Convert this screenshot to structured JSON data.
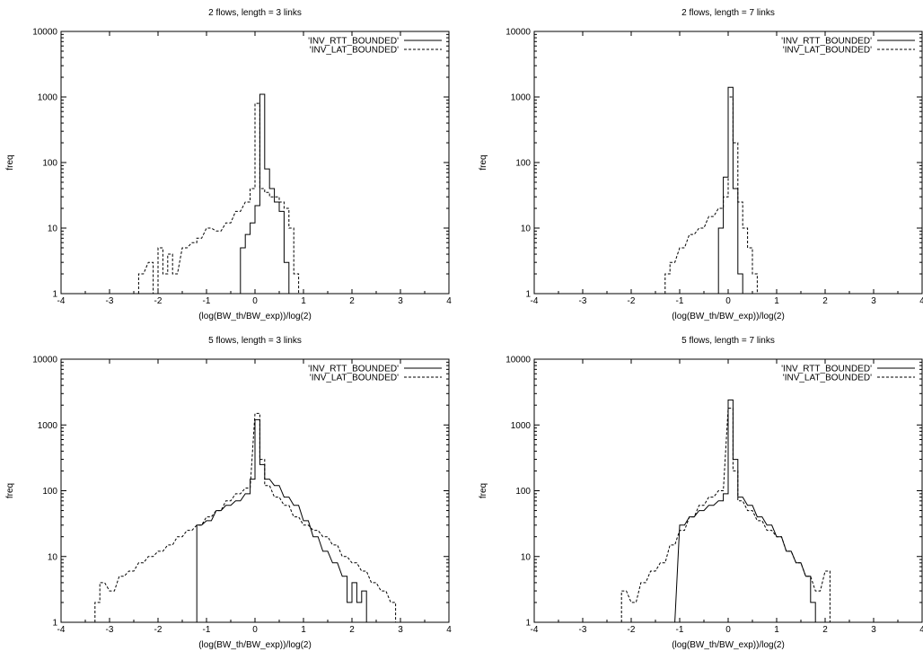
{
  "chart_data": [
    {
      "type": "histogram",
      "title": "2 flows, length = 3 links",
      "xlabel": "(log(BW_th/BW_exp))/log(2)",
      "ylabel": "freq",
      "xlim": [
        -4,
        4
      ],
      "ylim": [
        1,
        10000
      ],
      "yscale": "log",
      "x_ticks": [
        "-4",
        "-3",
        "-2",
        "-1",
        "0",
        "1",
        "2",
        "3",
        "4"
      ],
      "y_ticks": [
        "1",
        "10",
        "100",
        "1000",
        "10000"
      ],
      "legend_position": "top-right",
      "series": [
        {
          "name": "'INV_RTT_BOUNDED'",
          "style": "solid",
          "x": [
            -0.4,
            -0.3,
            -0.2,
            -0.1,
            0.0,
            0.1,
            0.2,
            0.3,
            0.4,
            0.5,
            0.6
          ],
          "y": [
            1,
            5,
            8,
            12,
            22,
            1100,
            80,
            40,
            25,
            18,
            3
          ]
        },
        {
          "name": "'INV_LAT_BOUNDED'",
          "style": "dashed",
          "x": [
            -2.4,
            -2.2,
            -2.1,
            -2.0,
            -1.9,
            -1.8,
            -1.7,
            -1.5,
            -1.3,
            -1.2,
            -1.0,
            -0.8,
            -0.6,
            -0.4,
            -0.2,
            -0.1,
            0.0,
            0.1,
            0.2,
            0.3,
            0.4,
            0.5,
            0.6,
            0.7,
            0.8
          ],
          "y": [
            2,
            3,
            1,
            5,
            2,
            4,
            2,
            5,
            6,
            7,
            10,
            9,
            12,
            18,
            25,
            40,
            800,
            40,
            35,
            30,
            30,
            25,
            20,
            10,
            2
          ]
        }
      ]
    },
    {
      "type": "histogram",
      "title": "2 flows, length = 7 links",
      "xlabel": "(log(BW_th/BW_exp))/log(2)",
      "ylabel": "freq",
      "xlim": [
        -4,
        4
      ],
      "ylim": [
        1,
        10000
      ],
      "yscale": "log",
      "x_ticks": [
        "-4",
        "-3",
        "-2",
        "-1",
        "0",
        "1",
        "2",
        "3",
        "4"
      ],
      "y_ticks": [
        "1",
        "10",
        "100",
        "1000",
        "10000"
      ],
      "legend_position": "top-right",
      "series": [
        {
          "name": "'INV_RTT_BOUNDED'",
          "style": "solid",
          "x": [
            -0.2,
            -0.1,
            0.0,
            0.1,
            0.2
          ],
          "y": [
            10,
            60,
            1400,
            40,
            2
          ]
        },
        {
          "name": "'INV_LAT_BOUNDED'",
          "style": "dashed",
          "x": [
            -1.3,
            -1.2,
            -1.0,
            -0.8,
            -0.6,
            -0.4,
            -0.2,
            -0.1,
            0.0,
            0.1,
            0.2,
            0.3,
            0.4,
            0.5
          ],
          "y": [
            2,
            3,
            5,
            8,
            10,
            15,
            20,
            30,
            1000,
            200,
            25,
            10,
            5,
            2
          ]
        }
      ]
    },
    {
      "type": "histogram",
      "title": "5 flows, length = 3 links",
      "xlabel": "(log(BW_th/BW_exp))/log(2)",
      "ylabel": "freq",
      "xlim": [
        -4,
        4
      ],
      "ylim": [
        1,
        10000
      ],
      "yscale": "log",
      "x_ticks": [
        "-4",
        "-3",
        "-2",
        "-1",
        "0",
        "1",
        "2",
        "3",
        "4"
      ],
      "y_ticks": [
        "1",
        "10",
        "100",
        "1000",
        "10000"
      ],
      "legend_position": "top-right",
      "series": [
        {
          "name": "'INV_RTT_BOUNDED'",
          "style": "solid",
          "x": [
            -1.3,
            -1.2,
            -1.0,
            -0.8,
            -0.6,
            -0.4,
            -0.2,
            -0.1,
            0.0,
            0.1,
            0.2,
            0.4,
            0.6,
            0.8,
            1.0,
            1.2,
            1.4,
            1.6,
            1.8,
            1.9,
            2.0,
            2.1,
            2.2
          ],
          "y": [
            1,
            30,
            35,
            50,
            60,
            70,
            90,
            150,
            1200,
            250,
            150,
            120,
            80,
            60,
            35,
            20,
            12,
            8,
            5,
            2,
            4,
            2,
            3
          ]
        },
        {
          "name": "'INV_LAT_BOUNDED'",
          "style": "dashed",
          "x": [
            -3.3,
            -3.2,
            -3.0,
            -2.8,
            -2.6,
            -2.4,
            -2.2,
            -2.0,
            -1.8,
            -1.6,
            -1.4,
            -1.2,
            -1.0,
            -0.8,
            -0.6,
            -0.4,
            -0.2,
            0.0,
            0.1,
            0.2,
            0.4,
            0.6,
            0.8,
            1.0,
            1.2,
            1.4,
            1.6,
            1.8,
            2.0,
            2.2,
            2.4,
            2.6,
            2.8
          ],
          "y": [
            2,
            4,
            3,
            5,
            6,
            8,
            10,
            12,
            15,
            20,
            25,
            30,
            40,
            50,
            70,
            90,
            110,
            1500,
            300,
            120,
            80,
            60,
            40,
            30,
            25,
            20,
            15,
            10,
            8,
            6,
            4,
            3,
            2
          ]
        }
      ]
    },
    {
      "type": "histogram",
      "title": "5 flows, length = 7 links",
      "xlabel": "(log(BW_th/BW_exp))/log(2)",
      "ylabel": "freq",
      "xlim": [
        -4,
        4
      ],
      "ylim": [
        1,
        10000
      ],
      "yscale": "log",
      "x_ticks": [
        "-4",
        "-3",
        "-2",
        "-1",
        "0",
        "1",
        "2",
        "3",
        "4"
      ],
      "y_ticks": [
        "1",
        "10",
        "100",
        "1000",
        "10000"
      ],
      "legend_position": "top-right",
      "series": [
        {
          "name": "'INV_RTT_BOUNDED'",
          "style": "solid",
          "x": [
            -1.2,
            -1.0,
            -0.8,
            -0.6,
            -0.4,
            -0.2,
            -0.1,
            0.0,
            0.1,
            0.2,
            0.4,
            0.6,
            0.8,
            1.0,
            1.2,
            1.4,
            1.6,
            1.7,
            1.8
          ],
          "y": [
            1,
            30,
            40,
            50,
            60,
            70,
            90,
            2400,
            300,
            80,
            60,
            40,
            30,
            20,
            12,
            8,
            5,
            2,
            1
          ]
        },
        {
          "name": "'INV_LAT_BOUNDED'",
          "style": "dashed",
          "x": [
            -2.2,
            -2.0,
            -1.8,
            -1.6,
            -1.4,
            -1.2,
            -1.0,
            -0.8,
            -0.6,
            -0.4,
            -0.2,
            0.0,
            0.1,
            0.2,
            0.4,
            0.6,
            0.8,
            1.0,
            1.2,
            1.4,
            1.6,
            1.8,
            2.0
          ],
          "y": [
            3,
            2,
            4,
            6,
            8,
            15,
            25,
            40,
            60,
            80,
            100,
            1800,
            200,
            70,
            50,
            35,
            25,
            20,
            12,
            8,
            5,
            3,
            6
          ]
        }
      ]
    }
  ]
}
